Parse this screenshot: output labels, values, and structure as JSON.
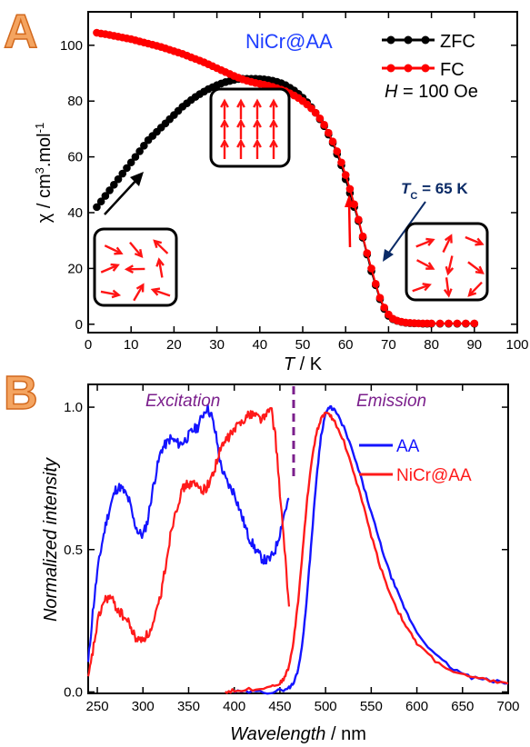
{
  "panels": {
    "a_letter": "A",
    "b_letter": "B"
  },
  "chart_data": [
    {
      "type": "scatter",
      "xlabel_italic": "T",
      "xlabel_rest": " / K",
      "ylabel_prefix": "χ / cm",
      "ylabel_sup": "3",
      "ylabel_mid": ".mol",
      "ylabel_sup2": "-1",
      "xlim": [
        0,
        100
      ],
      "ylim": [
        -3,
        112
      ],
      "xticks": [
        0,
        10,
        20,
        30,
        40,
        50,
        60,
        70,
        80,
        90,
        100
      ],
      "yticks": [
        0,
        20,
        40,
        60,
        80,
        100
      ],
      "compound_label": "NiCr@AA",
      "field_label_italic": "H",
      "field_label_rest": " = 100 Oe",
      "tc_label_italic": "T",
      "tc_label_sub": "C",
      "tc_label_rest": " = 65 K",
      "colors": {
        "zfc": "#000000",
        "fc": "#ff0000",
        "compound": "#1f3fff",
        "tc": "#0a2a66"
      },
      "series": [
        {
          "name": "ZFC",
          "key": "zfc",
          "x": [
            2,
            3,
            4,
            5,
            6,
            7,
            8,
            9,
            10,
            11,
            12,
            13,
            14,
            15,
            16,
            17,
            18,
            19,
            20,
            21,
            22,
            23,
            24,
            25,
            26,
            27,
            28,
            29,
            30,
            31,
            32,
            33,
            34,
            35,
            36,
            37,
            38,
            39,
            40,
            41,
            42,
            43,
            44,
            45,
            46,
            47,
            48,
            49,
            50,
            51,
            52,
            53,
            54,
            55,
            56,
            57,
            58,
            59,
            60,
            61,
            62,
            63,
            64,
            65,
            66,
            67,
            68,
            69,
            70,
            71,
            72,
            73,
            74,
            75,
            76,
            77,
            78,
            79,
            80,
            82,
            84,
            86,
            88,
            90
          ],
          "y": [
            42,
            44,
            46,
            48,
            50,
            52,
            54,
            56,
            58,
            60,
            62,
            64,
            66,
            67.5,
            69,
            70.5,
            72,
            73.5,
            75,
            76.5,
            78,
            79.2,
            80.4,
            81.5,
            82.5,
            83.4,
            84.3,
            85,
            85.7,
            86.3,
            86.8,
            87.2,
            87.6,
            87.9,
            88,
            88,
            88,
            88,
            87.9,
            87.8,
            87.6,
            87.3,
            86.9,
            86.4,
            85.7,
            84.8,
            83.8,
            82.6,
            81.2,
            79.6,
            77.8,
            75.8,
            73.5,
            71,
            68,
            65,
            61,
            57,
            52,
            47,
            42,
            37,
            31,
            25,
            19,
            14,
            9,
            5.5,
            3,
            1.8,
            1.2,
            0.8,
            0.5,
            0.4,
            0.3,
            0.3,
            0.2,
            0.2,
            0.2,
            0.2,
            0.2,
            0.2,
            0.2,
            0.2
          ]
        },
        {
          "name": "FC",
          "key": "fc",
          "x": [
            2,
            3,
            4,
            5,
            6,
            7,
            8,
            9,
            10,
            11,
            12,
            13,
            14,
            15,
            16,
            17,
            18,
            19,
            20,
            21,
            22,
            23,
            24,
            25,
            26,
            27,
            28,
            29,
            30,
            31,
            32,
            33,
            34,
            35,
            36,
            37,
            38,
            39,
            40,
            41,
            42,
            43,
            44,
            45,
            46,
            47,
            48,
            49,
            50,
            51,
            52,
            53,
            54,
            55,
            56,
            57,
            58,
            59,
            60,
            61,
            62,
            63,
            64,
            65,
            66,
            67,
            68,
            69,
            70,
            71,
            72,
            73,
            74,
            75,
            76,
            77,
            78,
            79,
            80,
            82,
            84,
            86,
            88,
            90
          ],
          "y": [
            104.5,
            104.2,
            104,
            103.7,
            103.4,
            103.1,
            102.8,
            102.5,
            102.2,
            101.8,
            101.4,
            101,
            100.6,
            100.2,
            99.8,
            99.4,
            98.9,
            98.4,
            97.9,
            97.4,
            96.9,
            96.3,
            95.7,
            95.1,
            94.5,
            93.9,
            93.2,
            92.5,
            91.8,
            91.1,
            90.4,
            89.7,
            89,
            88.4,
            87.8,
            87.3,
            86.9,
            86.5,
            86.2,
            85.9,
            85.5,
            85.1,
            84.6,
            84.1,
            83.5,
            82.8,
            82,
            81.1,
            80,
            78.8,
            77.4,
            75.8,
            73.8,
            71.5,
            68.6,
            65.5,
            62,
            58,
            53.5,
            48.5,
            43,
            37.5,
            31.5,
            25.5,
            20,
            14.5,
            9.5,
            6,
            3.5,
            2,
            1.3,
            0.9,
            0.6,
            0.5,
            0.4,
            0.3,
            0.3,
            0.3,
            0.3,
            0.3,
            0.3,
            0.3,
            0.3,
            0.3
          ]
        }
      ]
    },
    {
      "type": "line",
      "xlabel_italic": "Wavelength",
      "xlabel_rest": " / nm",
      "ylabel": "Normalized intensity",
      "xlim": [
        240,
        700
      ],
      "ylim": [
        -0.005,
        1.08
      ],
      "xticks": [
        250,
        300,
        350,
        400,
        450,
        500,
        550,
        600,
        650,
        700
      ],
      "yticks": [
        0.0,
        0.5,
        1.0
      ],
      "ytick_labels": [
        "0.0",
        "0.5",
        "1.0"
      ],
      "divider_x": 465,
      "excitation_label": "Excitation",
      "emission_label": "Emission",
      "colors": {
        "aa": "#1414ff",
        "nicr": "#ff1a1a",
        "divider": "#7b1f8c",
        "region_text": "#7b1f8c"
      },
      "series": [
        {
          "name": "AA",
          "key": "aa",
          "excitation": {
            "x": [
              240,
              245,
              250,
              255,
              260,
              265,
              270,
              275,
              280,
              285,
              290,
              295,
              300,
              305,
              310,
              315,
              320,
              325,
              330,
              335,
              340,
              345,
              350,
              355,
              360,
              365,
              370,
              375,
              380,
              385,
              390,
              395,
              400,
              405,
              410,
              415,
              420,
              425,
              430,
              435,
              440,
              445,
              450,
              455,
              460
            ],
            "y": [
              0.1,
              0.28,
              0.42,
              0.52,
              0.6,
              0.66,
              0.71,
              0.72,
              0.7,
              0.67,
              0.6,
              0.56,
              0.55,
              0.6,
              0.7,
              0.78,
              0.85,
              0.87,
              0.89,
              0.88,
              0.87,
              0.88,
              0.9,
              0.92,
              0.93,
              0.97,
              1.0,
              0.97,
              0.9,
              0.8,
              0.75,
              0.72,
              0.7,
              0.65,
              0.6,
              0.55,
              0.52,
              0.49,
              0.47,
              0.46,
              0.47,
              0.5,
              0.56,
              0.63,
              0.68
            ]
          },
          "emission": {
            "x": [
              400,
              420,
              440,
              450,
              460,
              465,
              470,
              475,
              480,
              485,
              490,
              495,
              500,
              505,
              510,
              520,
              530,
              540,
              550,
              560,
              570,
              580,
              590,
              600,
              620,
              640,
              660,
              680,
              700
            ],
            "y": [
              0.0,
              0.0,
              0.0,
              0.005,
              0.015,
              0.03,
              0.08,
              0.18,
              0.35,
              0.55,
              0.75,
              0.9,
              0.98,
              1.0,
              0.99,
              0.93,
              0.84,
              0.74,
              0.63,
              0.52,
              0.42,
              0.34,
              0.27,
              0.21,
              0.13,
              0.08,
              0.05,
              0.04,
              0.03
            ]
          }
        },
        {
          "name": "NiCr@AA",
          "key": "nicr",
          "excitation": {
            "x": [
              240,
              245,
              250,
              255,
              260,
              265,
              270,
              275,
              280,
              285,
              290,
              295,
              300,
              305,
              310,
              315,
              320,
              325,
              330,
              335,
              340,
              345,
              350,
              355,
              360,
              365,
              370,
              375,
              380,
              385,
              390,
              395,
              400,
              405,
              410,
              415,
              420,
              425,
              430,
              435,
              440,
              445,
              450,
              455,
              460
            ],
            "y": [
              0.04,
              0.14,
              0.24,
              0.3,
              0.33,
              0.33,
              0.3,
              0.28,
              0.26,
              0.24,
              0.2,
              0.18,
              0.19,
              0.2,
              0.22,
              0.28,
              0.35,
              0.45,
              0.55,
              0.63,
              0.68,
              0.72,
              0.73,
              0.73,
              0.72,
              0.71,
              0.72,
              0.75,
              0.8,
              0.85,
              0.88,
              0.9,
              0.92,
              0.94,
              0.96,
              0.97,
              0.98,
              0.97,
              0.96,
              0.97,
              1.0,
              0.9,
              0.7,
              0.5,
              0.3
            ]
          },
          "emission": {
            "x": [
              390,
              400,
              420,
              440,
              450,
              455,
              460,
              465,
              470,
              475,
              480,
              485,
              490,
              495,
              500,
              505,
              510,
              520,
              530,
              540,
              550,
              560,
              570,
              580,
              590,
              600,
              620,
              640,
              660,
              680,
              700
            ],
            "y": [
              0.0,
              0.005,
              0.01,
              0.02,
              0.03,
              0.05,
              0.09,
              0.18,
              0.32,
              0.5,
              0.68,
              0.82,
              0.91,
              0.96,
              0.98,
              0.97,
              0.95,
              0.88,
              0.78,
              0.67,
              0.55,
              0.44,
              0.35,
              0.28,
              0.22,
              0.17,
              0.11,
              0.07,
              0.05,
              0.04,
              0.03
            ]
          }
        }
      ]
    }
  ]
}
